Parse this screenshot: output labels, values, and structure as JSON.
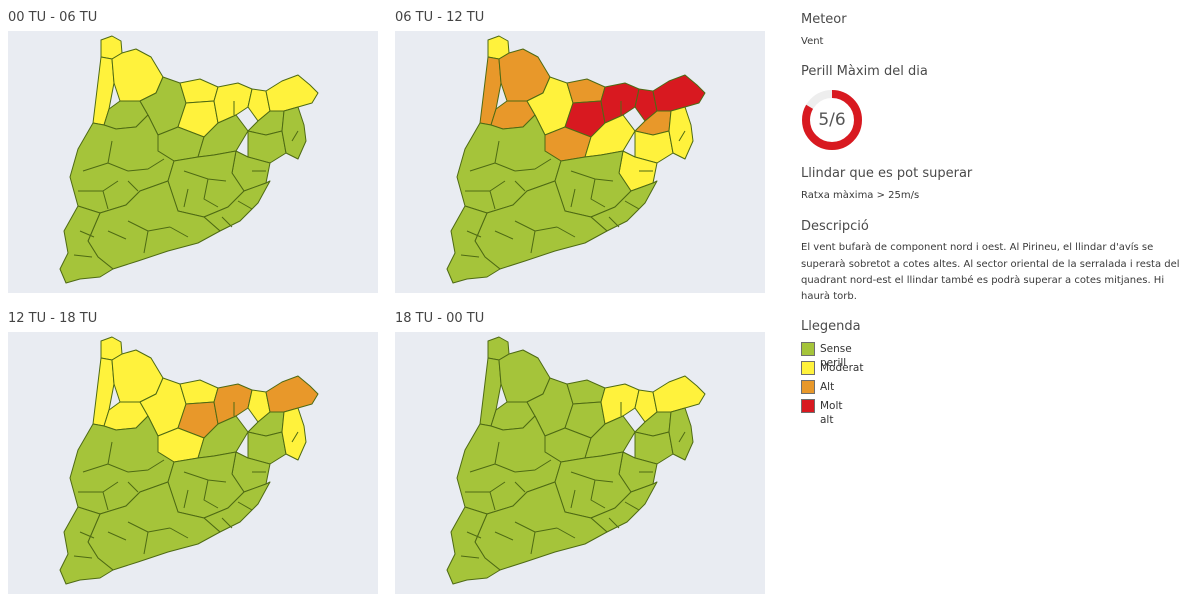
{
  "colors": {
    "sense_perill": "#a5c43a",
    "moderat": "#fff23c",
    "alt": "#e8982a",
    "molt_alt": "#d81920",
    "map_background": "#e9ecf2",
    "ring_track": "#eeeeee"
  },
  "panels": [
    {
      "title": "00 TU - 06 TU",
      "regions": {
        "vall_aran": "moderat",
        "pallars_sobira": "moderat",
        "alta_ribagorca": "moderat",
        "pallars_jussa": "sense_perill",
        "alt_urgell": "sense_perill",
        "cerdanya": "moderat",
        "bergueda": "moderat",
        "ripolles": "moderat",
        "garrotxa": "moderat",
        "alt_emporda": "moderat",
        "solsones": "sense_perill",
        "osona": "sense_perill",
        "pla_estany": "sense_perill",
        "girones": "sense_perill",
        "selva": "sense_perill",
        "baix_emporda": "sense_perill"
      }
    },
    {
      "title": "06 TU - 12 TU",
      "regions": {
        "vall_aran": "moderat",
        "pallars_sobira": "alt",
        "alta_ribagorca": "alt",
        "pallars_jussa": "alt",
        "alt_urgell": "moderat",
        "cerdanya": "alt",
        "bergueda": "molt_alt",
        "ripolles": "molt_alt",
        "garrotxa": "molt_alt",
        "alt_emporda": "molt_alt",
        "solsones": "alt",
        "osona": "moderat",
        "pla_estany": "alt",
        "girones": "moderat",
        "selva": "moderat",
        "baix_emporda": "moderat"
      }
    },
    {
      "title": "12 TU - 18 TU",
      "regions": {
        "vall_aran": "moderat",
        "pallars_sobira": "moderat",
        "alta_ribagorca": "moderat",
        "pallars_jussa": "moderat",
        "alt_urgell": "moderat",
        "cerdanya": "moderat",
        "bergueda": "alt",
        "ripolles": "alt",
        "garrotxa": "moderat",
        "alt_emporda": "alt",
        "solsones": "moderat",
        "osona": "sense_perill",
        "pla_estany": "sense_perill",
        "girones": "sense_perill",
        "selva": "sense_perill",
        "baix_emporda": "moderat"
      }
    },
    {
      "title": "18 TU - 00 TU",
      "regions": {
        "vall_aran": "sense_perill",
        "pallars_sobira": "sense_perill",
        "alta_ribagorca": "sense_perill",
        "pallars_jussa": "sense_perill",
        "alt_urgell": "sense_perill",
        "cerdanya": "sense_perill",
        "bergueda": "sense_perill",
        "ripolles": "moderat",
        "garrotxa": "moderat",
        "alt_emporda": "moderat",
        "solsones": "sense_perill",
        "osona": "sense_perill",
        "pla_estany": "sense_perill",
        "girones": "sense_perill",
        "selva": "sense_perill",
        "baix_emporda": "sense_perill"
      }
    }
  ],
  "sidebar": {
    "meteor_heading": "Meteor",
    "meteor_value": "Vent",
    "perill_heading": "Perill Màxim del dia",
    "perill_value": "5/6",
    "perill_fraction": 0.8333,
    "llindar_heading": "Llindar que es pot superar",
    "llindar_value": "Ratxa màxima > 25m/s",
    "descripcio_heading": "Descripció",
    "descripcio_lines": [
      "El vent bufarà de component nord i oest. Al Pirineu, el llindar d'avís se",
      "superarà sobretot a cotes altes. Al sector oriental de la serralada i resta del",
      "quadrant nord-est el llindar també es podrà superar a cotes mitjanes. Hi",
      "haurà torb."
    ],
    "llegenda_heading": "Llegenda",
    "legend": [
      {
        "label": "Sense perill",
        "color": "#a5c43a"
      },
      {
        "label": "Moderat",
        "color": "#fff23c"
      },
      {
        "label": "Alt",
        "color": "#e8982a"
      },
      {
        "label": "Molt alt",
        "color": "#d81920"
      }
    ]
  }
}
